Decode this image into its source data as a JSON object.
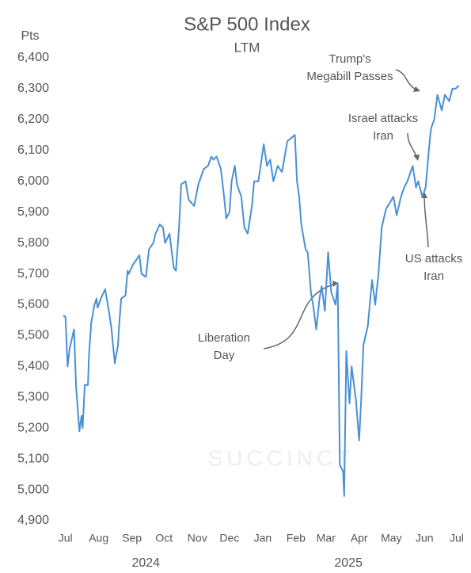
{
  "chart_data": {
    "type": "line",
    "title": "S&P 500 Index",
    "subtitle": "LTM",
    "y_label": "Pts",
    "watermark": "SUCCINCT",
    "grid": false,
    "ylim": [
      4900,
      6400
    ],
    "yticks": [
      {
        "value": 4900,
        "label": "4,900"
      },
      {
        "value": 5000,
        "label": "5,000"
      },
      {
        "value": 5100,
        "label": "5,100"
      },
      {
        "value": 5200,
        "label": "5,200"
      },
      {
        "value": 5300,
        "label": "5,300"
      },
      {
        "value": 5400,
        "label": "5,400"
      },
      {
        "value": 5500,
        "label": "5,500"
      },
      {
        "value": 5600,
        "label": "5,600"
      },
      {
        "value": 5700,
        "label": "5,700"
      },
      {
        "value": 5800,
        "label": "5,800"
      },
      {
        "value": 5900,
        "label": "5,900"
      },
      {
        "value": 6000,
        "label": "6,000"
      },
      {
        "value": 6100,
        "label": "6,100"
      },
      {
        "value": 6200,
        "label": "6,200"
      },
      {
        "value": 6300,
        "label": "6,300"
      },
      {
        "value": 6400,
        "label": "6,400"
      }
    ],
    "xlim": [
      -2,
      368
    ],
    "xticks": [
      {
        "value": 0,
        "label": "Jul"
      },
      {
        "value": 31,
        "label": "Aug"
      },
      {
        "value": 62,
        "label": "Sep"
      },
      {
        "value": 92,
        "label": "Oct"
      },
      {
        "value": 123,
        "label": "Nov"
      },
      {
        "value": 153,
        "label": "Dec"
      },
      {
        "value": 184,
        "label": "Jan"
      },
      {
        "value": 215,
        "label": "Feb"
      },
      {
        "value": 243,
        "label": "Mar"
      },
      {
        "value": 274,
        "label": "Apr"
      },
      {
        "value": 304,
        "label": "May"
      },
      {
        "value": 335,
        "label": "Jun"
      },
      {
        "value": 365,
        "label": "Jul"
      }
    ],
    "year_ticks": [
      {
        "value": 75,
        "label": "2024"
      },
      {
        "value": 264,
        "label": "2025"
      }
    ],
    "annotations": [
      {
        "text": [
          "Trump's",
          "Megabill Passes"
        ]
      },
      {
        "text": [
          "Israel attacks",
          "Iran"
        ]
      },
      {
        "text": [
          "US attacks",
          "Iran"
        ]
      },
      {
        "text": [
          "Liberation",
          "Day"
        ]
      }
    ],
    "series": [
      {
        "name": "S&P 500",
        "color": "#4a90d4",
        "x": [
          -2,
          0,
          2,
          4,
          8,
          10,
          13,
          15,
          16,
          18,
          21,
          22,
          24,
          27,
          29,
          30,
          33,
          37,
          40,
          43,
          46,
          49,
          50,
          52,
          56,
          58,
          59,
          63,
          69,
          71,
          75,
          78,
          82,
          84,
          88,
          91,
          93,
          97,
          101,
          103,
          106,
          108,
          112,
          115,
          120,
          124,
          129,
          133,
          136,
          138,
          141,
          145,
          148,
          150,
          153,
          155,
          158,
          160,
          164,
          167,
          170,
          174,
          176,
          180,
          185,
          188,
          191,
          194,
          198,
          202,
          207,
          214,
          216,
          218,
          220,
          224,
          226,
          229,
          231,
          234,
          237,
          239,
          242,
          245,
          248,
          252,
          254,
          256,
          259,
          260,
          262,
          265,
          267,
          271,
          274,
          276,
          278,
          282,
          286,
          289,
          292,
          295,
          299,
          306,
          309,
          313,
          316,
          319,
          324,
          327,
          329,
          333,
          336,
          339,
          341,
          344,
          347,
          351,
          354,
          358,
          361,
          364,
          367
        ],
        "values": [
          5565,
          5560,
          5400,
          5460,
          5520,
          5330,
          5190,
          5240,
          5200,
          5340,
          5340,
          5440,
          5540,
          5600,
          5620,
          5590,
          5620,
          5650,
          5590,
          5520,
          5410,
          5470,
          5530,
          5620,
          5630,
          5710,
          5700,
          5730,
          5760,
          5700,
          5690,
          5780,
          5800,
          5830,
          5860,
          5850,
          5800,
          5830,
          5720,
          5710,
          5850,
          5990,
          6000,
          5940,
          5920,
          5990,
          6040,
          6050,
          6080,
          6070,
          6080,
          6040,
          5950,
          5880,
          5900,
          6000,
          6050,
          5990,
          5950,
          5850,
          5830,
          5920,
          6000,
          6000,
          6120,
          6050,
          6070,
          6000,
          6050,
          6030,
          6130,
          6150,
          6000,
          5950,
          5860,
          5780,
          5770,
          5640,
          5600,
          5520,
          5620,
          5660,
          5580,
          5770,
          5640,
          5600,
          5670,
          5080,
          5060,
          4980,
          5450,
          5280,
          5400,
          5290,
          5160,
          5300,
          5470,
          5530,
          5680,
          5600,
          5700,
          5850,
          5910,
          5950,
          5890,
          5950,
          5980,
          6000,
          6050,
          5980,
          6000,
          5950,
          5980,
          6100,
          6170,
          6200,
          6280,
          6230,
          6280,
          6260,
          6300,
          6300,
          6310
        ]
      }
    ]
  }
}
